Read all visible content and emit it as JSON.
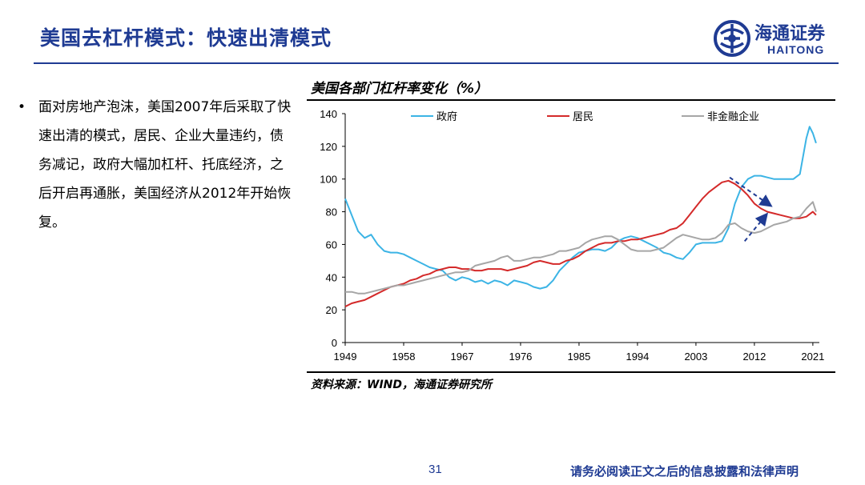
{
  "header": {
    "title": "美国去杠杆模式：快速出清模式"
  },
  "logo": {
    "cn": "海通证券",
    "en": "HAITONG"
  },
  "bullet": {
    "text": "面对房地产泡沫，美国2007年后采取了快速出清的模式，居民、企业大量违约，债务减记，政府大幅加杠杆、托底经济，之后开启再通胀，美国经济从2012年开始恢复。"
  },
  "chart_title": "美国各部门杠杆率变化（%）",
  "source": "资料来源：WIND，海通证券研究所",
  "footer": {
    "page": "31",
    "disclaimer": "请务必阅读正文之后的信息披露和法律声明"
  },
  "colors": {
    "brand": "#1f3b93",
    "gov": "#3cb4e5",
    "house": "#d42a2a",
    "corp": "#a6a6a6"
  },
  "chart_data": {
    "type": "line",
    "title": "美国各部门杠杆率变化（%）",
    "xlabel": "",
    "ylabel": "",
    "xlim": [
      1949,
      2022
    ],
    "ylim": [
      0,
      140
    ],
    "yticks": [
      0,
      20,
      40,
      60,
      80,
      100,
      120,
      140
    ],
    "xticks": [
      1949,
      1958,
      1967,
      1976,
      1985,
      1994,
      2003,
      2012,
      2021
    ],
    "legend_position": "top",
    "series": [
      {
        "name": "政府",
        "color": "#3cb4e5",
        "x": [
          1949,
          1950,
          1951,
          1952,
          1953,
          1954,
          1955,
          1956,
          1957,
          1958,
          1959,
          1960,
          1961,
          1962,
          1963,
          1964,
          1965,
          1966,
          1967,
          1968,
          1969,
          1970,
          1971,
          1972,
          1973,
          1974,
          1975,
          1976,
          1977,
          1978,
          1979,
          1980,
          1981,
          1982,
          1983,
          1984,
          1985,
          1986,
          1987,
          1988,
          1989,
          1990,
          1991,
          1992,
          1993,
          1994,
          1995,
          1996,
          1997,
          1998,
          1999,
          2000,
          2001,
          2002,
          2003,
          2004,
          2005,
          2006,
          2007,
          2008,
          2009,
          2010,
          2011,
          2012,
          2013,
          2014,
          2015,
          2016,
          2017,
          2018,
          2019,
          2020,
          2020.5,
          2021,
          2021.5
        ],
        "values": [
          88,
          78,
          68,
          64,
          66,
          60,
          56,
          55,
          55,
          54,
          52,
          50,
          48,
          46,
          45,
          44,
          40,
          38,
          40,
          39,
          37,
          38,
          36,
          38,
          37,
          35,
          38,
          37,
          36,
          34,
          33,
          34,
          38,
          44,
          48,
          52,
          55,
          56,
          57,
          57,
          56,
          58,
          62,
          64,
          65,
          64,
          62,
          60,
          58,
          55,
          54,
          52,
          51,
          55,
          60,
          61,
          61,
          61,
          62,
          70,
          85,
          95,
          100,
          102,
          102,
          101,
          100,
          100,
          100,
          100,
          103,
          125,
          132,
          128,
          122
        ]
      },
      {
        "name": "居民",
        "color": "#d42a2a",
        "x": [
          1949,
          1950,
          1951,
          1952,
          1953,
          1954,
          1955,
          1956,
          1957,
          1958,
          1959,
          1960,
          1961,
          1962,
          1963,
          1964,
          1965,
          1966,
          1967,
          1968,
          1969,
          1970,
          1971,
          1972,
          1973,
          1974,
          1975,
          1976,
          1977,
          1978,
          1979,
          1980,
          1981,
          1982,
          1983,
          1984,
          1985,
          1986,
          1987,
          1988,
          1989,
          1990,
          1991,
          1992,
          1993,
          1994,
          1995,
          1996,
          1997,
          1998,
          1999,
          2000,
          2001,
          2002,
          2003,
          2004,
          2005,
          2006,
          2007,
          2008,
          2009,
          2010,
          2011,
          2012,
          2013,
          2014,
          2015,
          2016,
          2017,
          2018,
          2019,
          2020,
          2021,
          2021.5
        ],
        "values": [
          22,
          24,
          25,
          26,
          28,
          30,
          32,
          34,
          35,
          36,
          38,
          39,
          41,
          42,
          44,
          45,
          46,
          46,
          45,
          45,
          44,
          44,
          45,
          45,
          45,
          44,
          45,
          46,
          47,
          49,
          50,
          49,
          48,
          48,
          50,
          51,
          53,
          56,
          58,
          60,
          61,
          61,
          62,
          62,
          63,
          63,
          64,
          65,
          66,
          67,
          69,
          70,
          73,
          78,
          83,
          88,
          92,
          95,
          98,
          99,
          97,
          94,
          90,
          85,
          82,
          80,
          79,
          78,
          77,
          76,
          76,
          77,
          80,
          78
        ]
      },
      {
        "name": "非金融企业",
        "color": "#a6a6a6",
        "x": [
          1949,
          1950,
          1951,
          1952,
          1953,
          1954,
          1955,
          1956,
          1957,
          1958,
          1959,
          1960,
          1961,
          1962,
          1963,
          1964,
          1965,
          1966,
          1967,
          1968,
          1969,
          1970,
          1971,
          1972,
          1973,
          1974,
          1975,
          1976,
          1977,
          1978,
          1979,
          1980,
          1981,
          1982,
          1983,
          1984,
          1985,
          1986,
          1987,
          1988,
          1989,
          1990,
          1991,
          1992,
          1993,
          1994,
          1995,
          1996,
          1997,
          1998,
          1999,
          2000,
          2001,
          2002,
          2003,
          2004,
          2005,
          2006,
          2007,
          2008,
          2009,
          2010,
          2011,
          2012,
          2013,
          2014,
          2015,
          2016,
          2017,
          2018,
          2019,
          2020,
          2021,
          2021.5
        ],
        "values": [
          31,
          31,
          30,
          30,
          31,
          32,
          33,
          34,
          35,
          35,
          36,
          37,
          38,
          39,
          40,
          41,
          42,
          43,
          43,
          44,
          47,
          48,
          49,
          50,
          52,
          53,
          50,
          50,
          51,
          52,
          52,
          53,
          54,
          56,
          56,
          57,
          58,
          61,
          63,
          64,
          65,
          65,
          63,
          60,
          57,
          56,
          56,
          56,
          57,
          58,
          61,
          64,
          66,
          65,
          64,
          63,
          63,
          64,
          67,
          72,
          73,
          70,
          68,
          67,
          68,
          70,
          72,
          73,
          74,
          76,
          77,
          82,
          86,
          80
        ]
      }
    ]
  }
}
